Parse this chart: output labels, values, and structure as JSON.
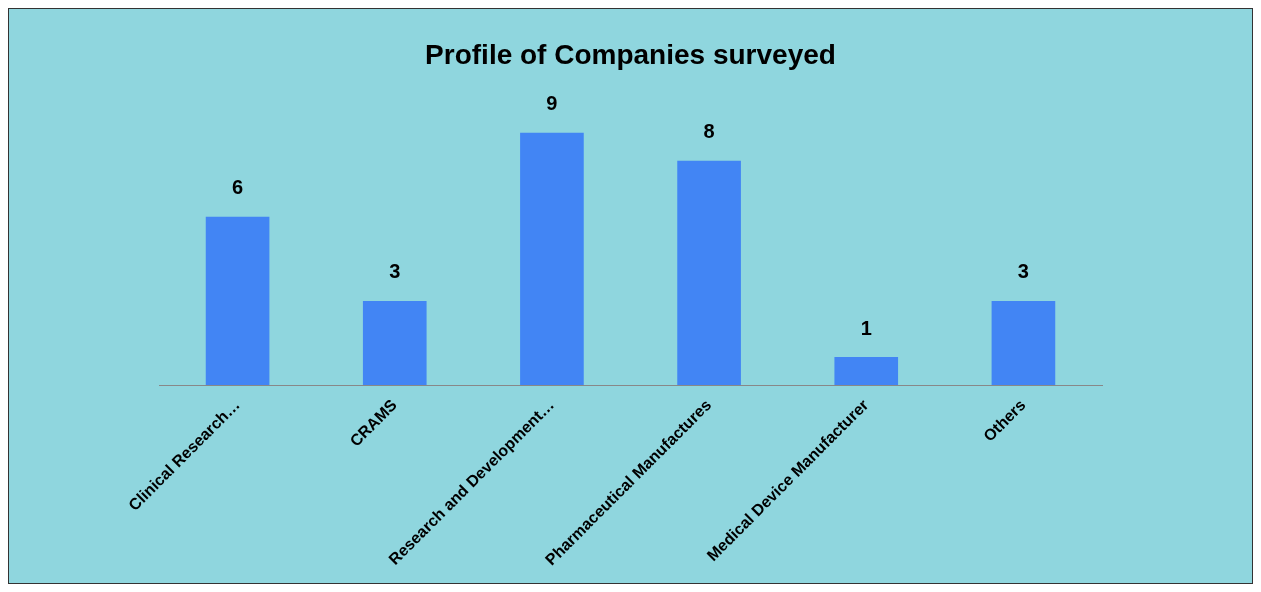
{
  "chart_data": {
    "type": "bar",
    "title": "Profile of Companies surveyed",
    "categories": [
      "Clinical Research…",
      "CRAMS",
      "Research and Development…",
      "Pharmaceutical Manufactures",
      "Medical Device Manufacturer",
      "Others"
    ],
    "values": [
      6,
      3,
      9,
      8,
      1,
      3
    ],
    "color": "#4285f4",
    "data_labels": true,
    "grid": false,
    "legend": false
  }
}
